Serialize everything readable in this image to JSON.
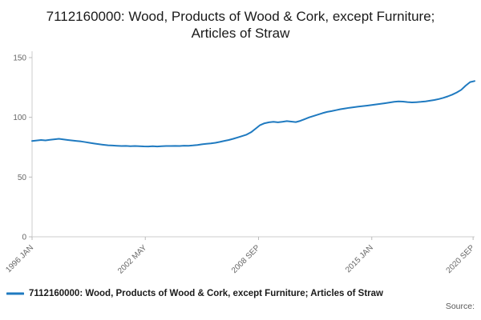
{
  "title": "7112160000: Wood, Products of Wood & Cork, except Furniture; Articles of Straw",
  "legend": {
    "label": "7112160000: Wood, Products of Wood & Cork, except Furniture; Articles of Straw"
  },
  "source_label": "Source:",
  "colors": {
    "line": "#1f7ac0",
    "axis": "#cccccc",
    "tick": "#bbbbbb",
    "tick_text": "#666666",
    "title_text": "#1a1a1a"
  },
  "chart_data": {
    "type": "line",
    "title": "7112160000: Wood, Products of Wood & Cork, except Furniture; Articles of Straw",
    "xlabel": "",
    "ylabel": "",
    "ylim": [
      0,
      150
    ],
    "y_ticks": [
      0,
      50,
      100,
      150
    ],
    "x_ticks": [
      {
        "label": "1996 JAN",
        "month": 0
      },
      {
        "label": "2002 MAY",
        "month": 76
      },
      {
        "label": "2008 SEP",
        "month": 152
      },
      {
        "label": "2015 JAN",
        "month": 228
      },
      {
        "label": "2020 SEP",
        "month": 296
      }
    ],
    "total_months": 297,
    "sample_interval_months": 3,
    "grid": false,
    "legend_position": "bottom-left",
    "values": [
      80.2,
      80.6,
      81.0,
      80.7,
      81.2,
      81.6,
      82.0,
      81.5,
      81.0,
      80.6,
      80.2,
      79.8,
      79.2,
      78.6,
      78.0,
      77.5,
      77.0,
      76.6,
      76.4,
      76.2,
      76.0,
      76.1,
      75.9,
      76.0,
      75.9,
      75.7,
      75.6,
      75.8,
      75.6,
      75.8,
      76.0,
      76.0,
      76.1,
      76.0,
      76.3,
      76.2,
      76.5,
      76.9,
      77.4,
      77.9,
      78.2,
      78.7,
      79.4,
      80.3,
      81.0,
      82.0,
      83.2,
      84.3,
      85.5,
      87.5,
      90.5,
      93.5,
      95.0,
      95.8,
      96.2,
      95.8,
      96.3,
      96.8,
      96.4,
      96.0,
      97.0,
      98.5,
      100.0,
      101.2,
      102.3,
      103.5,
      104.5,
      105.2,
      106.0,
      106.8,
      107.4,
      108.0,
      108.5,
      109.0,
      109.4,
      109.8,
      110.3,
      110.8,
      111.3,
      111.8,
      112.4,
      113.0,
      113.4,
      113.2,
      112.8,
      112.5,
      112.7,
      113.0,
      113.4,
      113.9,
      114.5,
      115.3,
      116.3,
      117.5,
      119.0,
      120.8,
      123.0,
      126.5,
      129.5,
      130.4
    ]
  }
}
